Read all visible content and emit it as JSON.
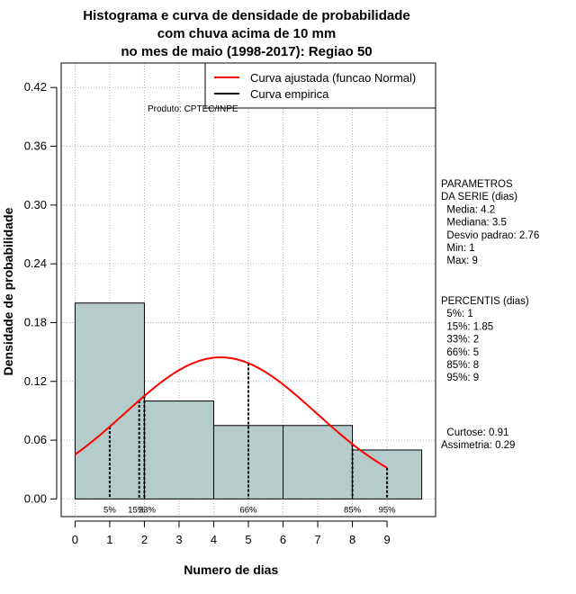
{
  "chart_data": {
    "type": "bar",
    "title": [
      "Histograma e curva de densidade de probabilidade",
      "com chuva acima de 10 mm",
      "no mes de maio (1998-2017): Regiao 50"
    ],
    "xlabel": "Numero de dias",
    "ylabel": "Densidade de probabilidade",
    "xlim": [
      -0.4,
      10.4
    ],
    "ylim": [
      -0.018,
      0.445
    ],
    "xticks": [
      0,
      1,
      2,
      3,
      4,
      5,
      6,
      7,
      8,
      9
    ],
    "yticks": [
      0.0,
      0.06,
      0.12,
      0.18,
      0.24,
      0.3,
      0.36,
      0.42
    ],
    "ytick_labels": [
      "0.00",
      "0.06",
      "0.12",
      "0.18",
      "0.24",
      "0.30",
      "0.36",
      "0.42"
    ],
    "bins": [
      {
        "from": 0,
        "to": 2,
        "density": 0.2
      },
      {
        "from": 2,
        "to": 4,
        "density": 0.1
      },
      {
        "from": 4,
        "to": 6,
        "density": 0.075
      },
      {
        "from": 6,
        "to": 8,
        "density": 0.075
      },
      {
        "from": 8,
        "to": 10,
        "density": 0.05
      }
    ],
    "normal_fit": {
      "mean": 4.2,
      "sd": 2.76,
      "x_from": 0,
      "x_to": 9
    },
    "percentile_lines": [
      {
        "label": "5%",
        "x": 1
      },
      {
        "label": "15%",
        "x": 1.85
      },
      {
        "label": "33%",
        "x": 2
      },
      {
        "label": "66%",
        "x": 5
      },
      {
        "label": "85%",
        "x": 8
      },
      {
        "label": "95%",
        "x": 9
      }
    ],
    "legend": [
      {
        "label": "Curva ajustada (funcao Normal)",
        "color": "#ff0000"
      },
      {
        "label": "Curva empirica",
        "color": "#000000"
      }
    ],
    "legend_position": "top-right",
    "product_note": "Produto: CPTEC/INPE",
    "bar_color": "#b5cccb",
    "curve_color": "#ff0000"
  },
  "side_panel": {
    "parametros": [
      "PARAMETROS",
      "DA SERIE (dias)",
      "  Media: 4.2",
      "  Mediana: 3.5",
      "  Desvio padrao: 2.76",
      "  Min: 1",
      "  Max: 9"
    ],
    "percentis": [
      "PERCENTIS (dias)",
      "  5%: 1",
      "  15%: 1.85",
      "  33%: 2",
      "  66%: 5",
      "  85%: 8",
      "  95%: 9"
    ],
    "stats": [
      "  Curtose: 0.91",
      "Assimetria: 0.29"
    ]
  }
}
